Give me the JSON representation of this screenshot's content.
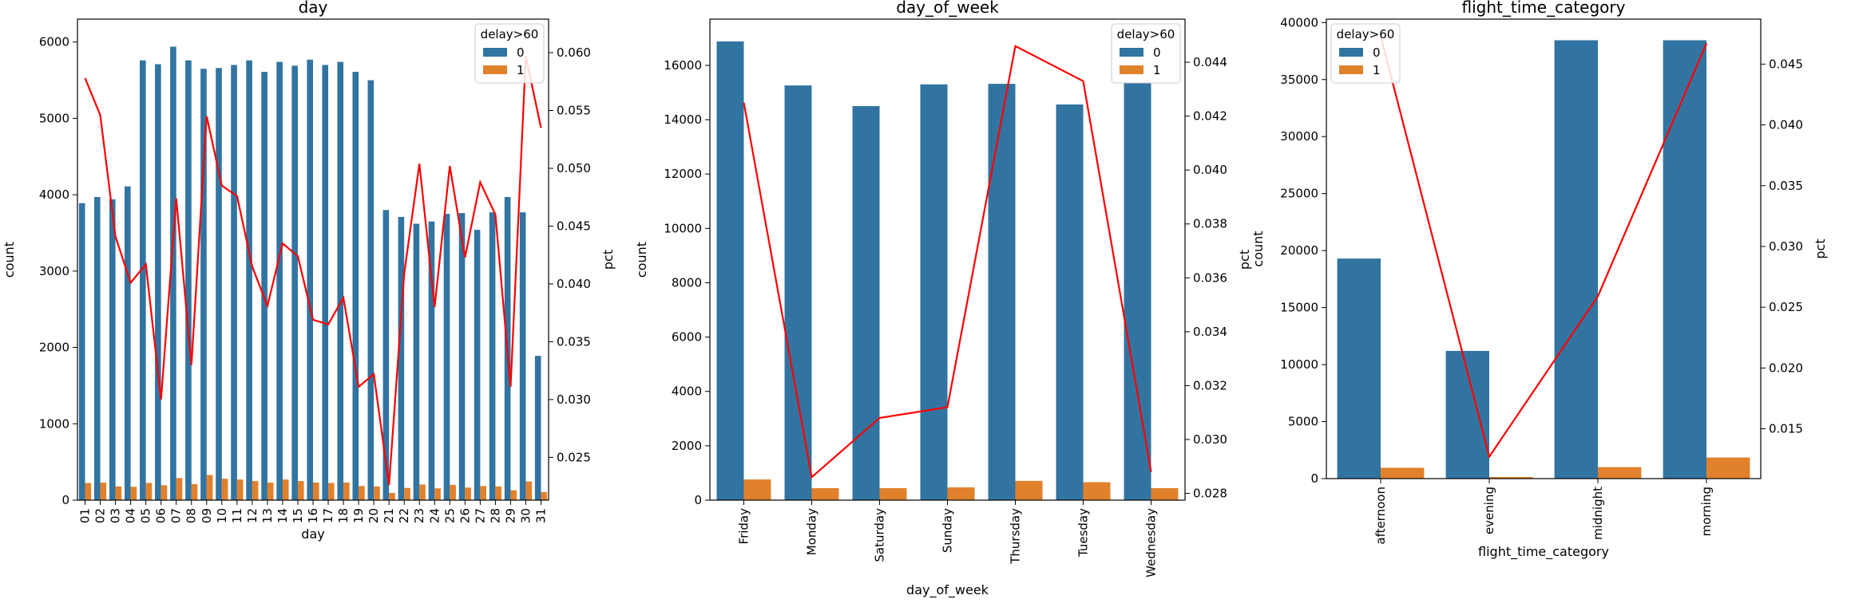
{
  "colors": {
    "bar0": "#3274a1",
    "bar1": "#e1812c",
    "line": "#ff0000"
  },
  "chart_data": [
    {
      "type": "bar",
      "title": "day",
      "xlabel": "day",
      "ylabel": "count",
      "y2label": "pct",
      "ylim": [
        0,
        6300
      ],
      "yticks": [
        0,
        1000,
        2000,
        3000,
        4000,
        5000,
        6000
      ],
      "y2lim": [
        0.0213,
        0.0629
      ],
      "y2ticks": [
        0.025,
        0.03,
        0.035,
        0.04,
        0.045,
        0.05,
        0.055,
        0.06
      ],
      "y2_decimals": 3,
      "xtick_rotation": 90,
      "legend": {
        "title": "delay>60",
        "labels": [
          "0",
          "1"
        ],
        "position": "upper right"
      },
      "categories": [
        "01",
        "02",
        "03",
        "04",
        "05",
        "06",
        "07",
        "08",
        "09",
        "10",
        "11",
        "12",
        "13",
        "14",
        "15",
        "16",
        "17",
        "18",
        "19",
        "20",
        "21",
        "22",
        "23",
        "24",
        "25",
        "26",
        "27",
        "28",
        "29",
        "30",
        "31"
      ],
      "series": [
        {
          "name": "0",
          "values": [
            3890,
            3970,
            3940,
            4110,
            5760,
            5710,
            5940,
            5760,
            5650,
            5660,
            5700,
            5760,
            5610,
            5740,
            5690,
            5770,
            5700,
            5740,
            5610,
            5500,
            3800,
            3710,
            3620,
            3650,
            3750,
            3760,
            3540,
            3770,
            3970,
            3770,
            1890
          ]
        },
        {
          "name": "1",
          "values": [
            225,
            230,
            180,
            175,
            225,
            195,
            290,
            210,
            330,
            280,
            270,
            250,
            230,
            270,
            250,
            230,
            225,
            230,
            185,
            180,
            95,
            160,
            205,
            155,
            200,
            165,
            185,
            180,
            130,
            245,
            105
          ]
        }
      ],
      "line": {
        "axis": "right",
        "values": [
          0.0578,
          0.0546,
          0.0441,
          0.0401,
          0.0417,
          0.03,
          0.0474,
          0.033,
          0.0545,
          0.0485,
          0.0476,
          0.0415,
          0.0381,
          0.0435,
          0.0424,
          0.0369,
          0.0365,
          0.0388,
          0.0311,
          0.0322,
          0.0226,
          0.0409,
          0.0504,
          0.038,
          0.0502,
          0.0423,
          0.0488,
          0.046,
          0.0311,
          0.0597,
          0.0535
        ]
      }
    },
    {
      "type": "bar",
      "title": "day_of_week",
      "xlabel": "day_of_week",
      "ylabel": "count",
      "y2label": "pct",
      "ylim": [
        0,
        17700
      ],
      "yticks": [
        0,
        2000,
        4000,
        6000,
        8000,
        10000,
        12000,
        14000,
        16000
      ],
      "y2lim": [
        0.02775,
        0.0456
      ],
      "y2ticks": [
        0.028,
        0.03,
        0.032,
        0.034,
        0.036,
        0.038,
        0.04,
        0.042,
        0.044
      ],
      "y2_decimals": 3,
      "xtick_rotation": 90,
      "legend": {
        "title": "delay>60",
        "labels": [
          "0",
          "1"
        ],
        "position": "upper right"
      },
      "categories": [
        "Friday",
        "Monday",
        "Saturday",
        "Sunday",
        "Thursday",
        "Tuesday",
        "Wednesday"
      ],
      "series": [
        {
          "name": "0",
          "values": [
            16880,
            15260,
            14500,
            15300,
            15320,
            14560,
            15370
          ]
        },
        {
          "name": "1",
          "values": [
            760,
            440,
            440,
            470,
            710,
            660,
            440
          ]
        }
      ],
      "line": {
        "axis": "right",
        "values": [
          0.0425,
          0.0286,
          0.0308,
          0.0312,
          0.0446,
          0.0433,
          0.0288
        ]
      }
    },
    {
      "type": "bar",
      "title": "flight_time_category",
      "xlabel": "flight_time_category",
      "ylabel": "count",
      "y2label": "pct",
      "ylim": [
        0,
        40300
      ],
      "yticks": [
        0,
        5000,
        10000,
        15000,
        20000,
        25000,
        30000,
        35000,
        40000
      ],
      "y2lim": [
        0.0109,
        0.0487
      ],
      "y2ticks": [
        0.015,
        0.02,
        0.025,
        0.03,
        0.035,
        0.04,
        0.045
      ],
      "y2_decimals": 3,
      "xtick_rotation": 90,
      "legend": {
        "title": "delay>60",
        "labels": [
          "0",
          "1"
        ],
        "position": "upper left"
      },
      "categories": [
        "afternoon",
        "evening",
        "midnight",
        "morning"
      ],
      "series": [
        {
          "name": "0",
          "values": [
            19300,
            11200,
            38450,
            38450
          ]
        },
        {
          "name": "1",
          "values": [
            950,
            140,
            1010,
            1850
          ]
        }
      ],
      "line": {
        "axis": "right",
        "values": [
          0.0473,
          0.0127,
          0.0259,
          0.0467
        ]
      }
    }
  ]
}
